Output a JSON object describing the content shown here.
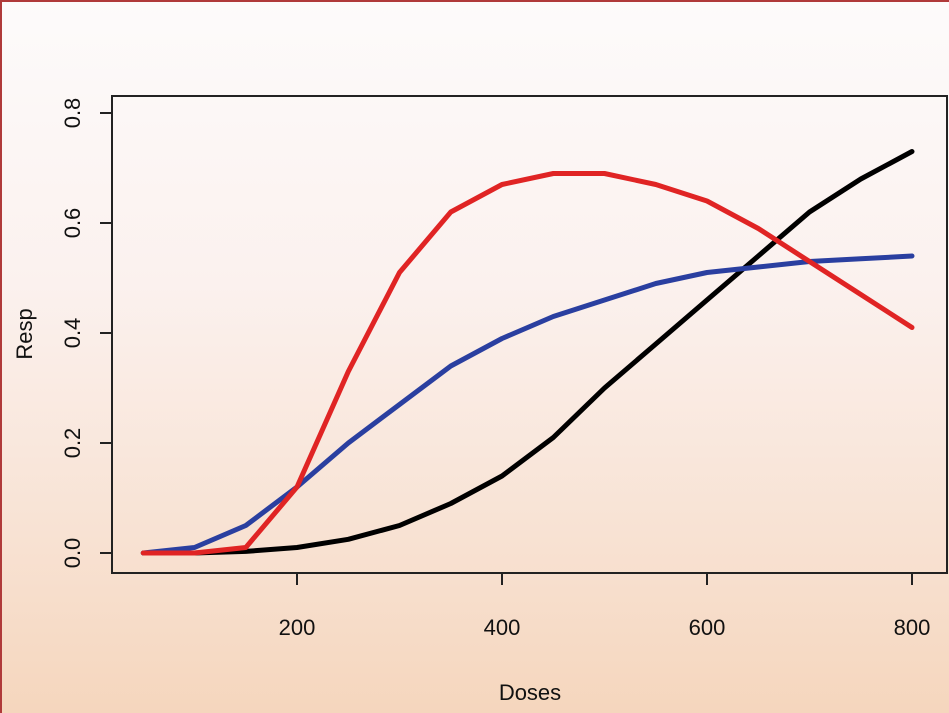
{
  "chart_data": {
    "type": "line",
    "xlabel": "Doses",
    "ylabel": "Resp",
    "xlim": [
      50,
      800
    ],
    "ylim": [
      0,
      0.8
    ],
    "x_ticks": [
      "200",
      "400",
      "600",
      "800"
    ],
    "y_ticks": [
      "0.0",
      "0.2",
      "0.4",
      "0.6",
      "0.8"
    ],
    "grid": false,
    "x": [
      50,
      100,
      150,
      200,
      250,
      300,
      350,
      400,
      450,
      500,
      550,
      600,
      650,
      700,
      750,
      800
    ],
    "series": [
      {
        "color": "#000000",
        "values": [
          0.0,
          0.0,
          0.003,
          0.01,
          0.025,
          0.05,
          0.09,
          0.14,
          0.21,
          0.3,
          0.38,
          0.46,
          0.54,
          0.62,
          0.68,
          0.73
        ]
      },
      {
        "color": "#2a3fa0",
        "values": [
          0.0,
          0.01,
          0.05,
          0.12,
          0.2,
          0.27,
          0.34,
          0.39,
          0.43,
          0.46,
          0.49,
          0.51,
          0.52,
          0.53,
          0.535,
          0.54
        ]
      },
      {
        "color": "#e02424",
        "values": [
          0.0,
          0.0,
          0.01,
          0.12,
          0.33,
          0.51,
          0.62,
          0.67,
          0.69,
          0.69,
          0.67,
          0.64,
          0.59,
          0.53,
          0.47,
          0.41
        ]
      }
    ]
  }
}
